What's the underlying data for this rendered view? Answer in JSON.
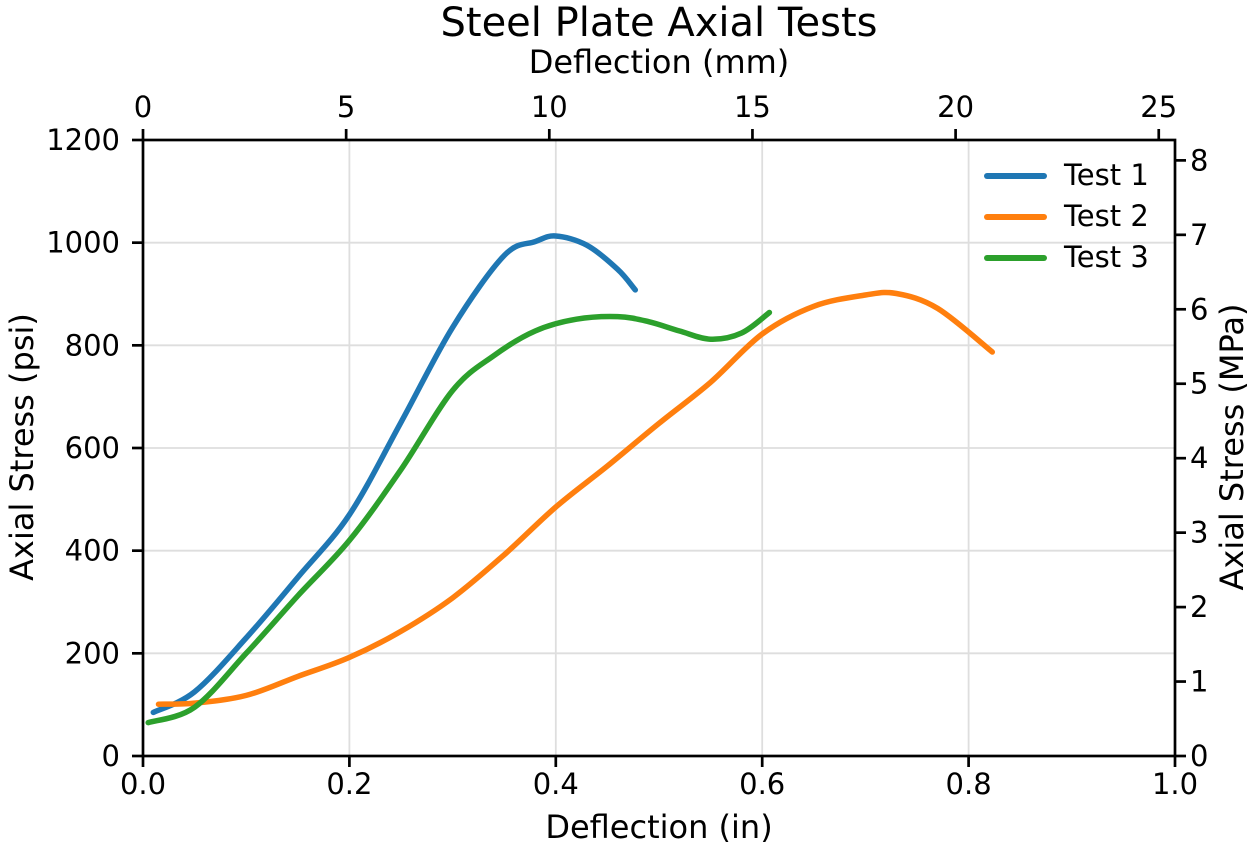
{
  "title": "Steel Plate Axial Tests",
  "appearance": {
    "background": "#ffffff",
    "grid_color": "#dedede",
    "axis_color": "#000000",
    "text_color": "#000000",
    "series_line_width": 5.5
  },
  "legend": {
    "position": "upper right",
    "frame": false,
    "entries": [
      {
        "label": "Test 1",
        "color": "#1f77b4"
      },
      {
        "label": "Test 2",
        "color": "#ff7f0e"
      },
      {
        "label": "Test 3",
        "color": "#2ca02c"
      }
    ]
  },
  "chart_data": {
    "type": "line",
    "title": "Steel Plate Axial Tests",
    "xlabel": "Deflection (in)",
    "ylabel": "Axial Stress (psi)",
    "x2label": "Deflection (mm)",
    "y2label": "Axial Stress (MPa)",
    "xlim": [
      0,
      1.0
    ],
    "ylim": [
      0,
      1200
    ],
    "x2lim": [
      0,
      25.4
    ],
    "y2lim": [
      0,
      8.27
    ],
    "grid": true,
    "legend_position": "upper right",
    "legend_frame": false,
    "x_ticks": [
      "0.0",
      "0.2",
      "0.4",
      "0.6",
      "0.8",
      "1.0"
    ],
    "y_ticks": [
      "0",
      "200",
      "400",
      "600",
      "800",
      "1000",
      "1200"
    ],
    "x2_ticks": [
      "0",
      "5",
      "10",
      "15",
      "20",
      "25"
    ],
    "y2_ticks": [
      "0",
      "1",
      "2",
      "3",
      "4",
      "5",
      "6",
      "7",
      "8"
    ],
    "unit_conversion": {
      "mm_per_in": 25.4,
      "psi_per_mpa": 145.038
    },
    "series": [
      {
        "name": "Test 1",
        "color": "#1f77b4",
        "x": [
          0.01,
          0.05,
          0.1,
          0.15,
          0.2,
          0.25,
          0.3,
          0.35,
          0.38,
          0.4,
          0.43,
          0.46,
          0.477
        ],
        "y": [
          85,
          125,
          230,
          348,
          470,
          650,
          835,
          975,
          1002,
          1013,
          995,
          948,
          908
        ]
      },
      {
        "name": "Test 2",
        "color": "#ff7f0e",
        "x": [
          0.015,
          0.05,
          0.1,
          0.15,
          0.2,
          0.25,
          0.3,
          0.35,
          0.4,
          0.45,
          0.5,
          0.55,
          0.6,
          0.65,
          0.7,
          0.73,
          0.77,
          0.823
        ],
        "y": [
          101,
          103,
          118,
          155,
          192,
          243,
          308,
          392,
          485,
          565,
          648,
          728,
          822,
          876,
          898,
          901,
          872,
          787
        ]
      },
      {
        "name": "Test 3",
        "color": "#2ca02c",
        "x": [
          0.005,
          0.05,
          0.1,
          0.15,
          0.2,
          0.25,
          0.3,
          0.34,
          0.38,
          0.42,
          0.46,
          0.49,
          0.52,
          0.55,
          0.58,
          0.607
        ],
        "y": [
          65,
          95,
          200,
          312,
          420,
          558,
          712,
          780,
          828,
          851,
          856,
          846,
          828,
          812,
          824,
          864
        ]
      }
    ]
  }
}
